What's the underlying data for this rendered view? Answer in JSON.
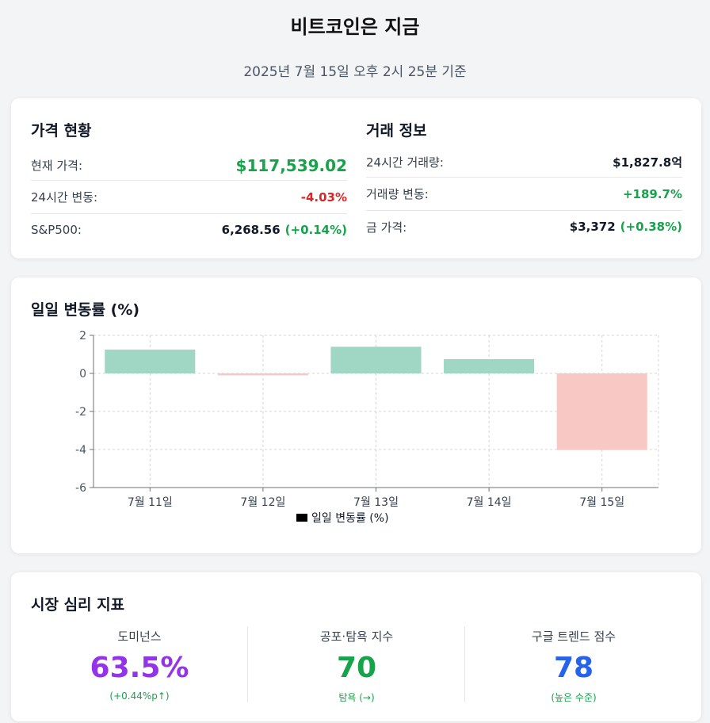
{
  "header": {
    "title": "비트코인은 지금",
    "subtitle": "2025년 7월 15일 오후 2시 25분 기준"
  },
  "price_status": {
    "title": "가격 현황",
    "rows": [
      {
        "label": "현재 가격:",
        "value": "$117,539.02",
        "color": "#16a34a"
      },
      {
        "label": "24시간 변동:",
        "value": "-4.03%",
        "color": "#dc2626"
      },
      {
        "label": "S&P500:",
        "value": "6,268.56",
        "change": "(+0.14%)"
      }
    ]
  },
  "trade_info": {
    "title": "거래 정보",
    "rows": [
      {
        "label": "24시간 거래량:",
        "value": "$1,827.8억"
      },
      {
        "label": "거래량 변동:",
        "value": "+189.7%",
        "color": "#16a34a"
      },
      {
        "label": "금 가격:",
        "value": "$3,372",
        "change": "(+0.38%)"
      }
    ]
  },
  "chart_section": {
    "title": "일일 변동률 (%)"
  },
  "chart_data": {
    "type": "bar",
    "title": "일일 변동률 (%)",
    "categories": [
      "7월 11일",
      "7월 12일",
      "7월 13일",
      "7월 14일",
      "7월 15일"
    ],
    "series": [
      {
        "name": "일일 변동률 (%)",
        "values": [
          1.25,
          -0.1,
          1.4,
          0.75,
          -4.03
        ]
      }
    ],
    "ylim": [
      -6,
      2
    ],
    "yticks": [
      "2",
      "0",
      "-2",
      "-4",
      "-6"
    ],
    "grid": true,
    "legend": "bottom",
    "positive_color": "#a0d6c4",
    "negative_color": "#f8c9c4"
  },
  "sentiment": {
    "title": "시장 심리 지표",
    "metrics": [
      {
        "label": "도미넌스",
        "value": "63.5%",
        "sub": "(+0.44%p↑)",
        "color": "#9333ea"
      },
      {
        "label": "공포·탐욕 지수",
        "value": "70",
        "sub": "탐욕 (→)",
        "color": "#16a34a"
      },
      {
        "label": "구글 트렌드 점수",
        "value": "78",
        "sub": "(높은 수준)",
        "color": "#2563eb"
      }
    ]
  }
}
